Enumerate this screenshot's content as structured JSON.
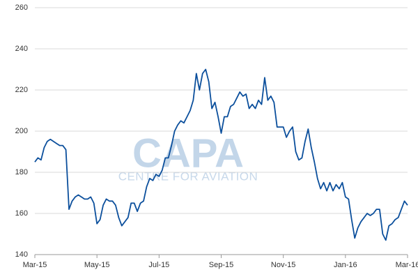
{
  "chart_data": {
    "type": "line",
    "watermark": "CAPA",
    "watermark_subtitle": "CENTRE FOR AVIATION",
    "categories": [
      "Mar-15",
      null,
      null,
      null,
      null,
      null,
      null,
      null,
      null,
      null,
      null,
      null,
      null,
      null,
      null,
      null,
      null,
      null,
      null,
      null,
      "May-15",
      null,
      null,
      null,
      null,
      null,
      null,
      null,
      null,
      null,
      null,
      null,
      null,
      null,
      null,
      null,
      null,
      null,
      null,
      null,
      "Jul-15",
      null,
      null,
      null,
      null,
      null,
      null,
      null,
      null,
      null,
      null,
      null,
      null,
      null,
      null,
      null,
      null,
      null,
      null,
      null,
      "Sep-15",
      null,
      null,
      null,
      null,
      null,
      null,
      null,
      null,
      null,
      null,
      null,
      null,
      null,
      null,
      null,
      null,
      null,
      null,
      null,
      "Nov-15",
      null,
      null,
      null,
      null,
      null,
      null,
      null,
      null,
      null,
      null,
      null,
      null,
      null,
      null,
      null,
      null,
      null,
      null,
      null,
      "Jan-16",
      null,
      null,
      null,
      null,
      null,
      null,
      null,
      null,
      null,
      null,
      null,
      null,
      null,
      null,
      null,
      null,
      null,
      null,
      null,
      "Mar-16"
    ],
    "series": [
      {
        "color": "#0b4f9c",
        "values": [
          185,
          187,
          186,
          192,
          195,
          196,
          195,
          194,
          193,
          193,
          191,
          162,
          166,
          168,
          169,
          168,
          167,
          167,
          168,
          165,
          155,
          157,
          164,
          167,
          166,
          166,
          164,
          158,
          154,
          156,
          158,
          165,
          165,
          161,
          165,
          166,
          173,
          177,
          176,
          179,
          178,
          181,
          187,
          187,
          193,
          200,
          203,
          205,
          204,
          207,
          210,
          215,
          228,
          220,
          228,
          230,
          224,
          211,
          214,
          207,
          199,
          207,
          207,
          212,
          213,
          216,
          219,
          217,
          218,
          211,
          213,
          211,
          215,
          213,
          226,
          215,
          217,
          214,
          202,
          202,
          202,
          197,
          200,
          202,
          190,
          186,
          187,
          195,
          201,
          192,
          185,
          177,
          172,
          175,
          171,
          175,
          171,
          174,
          172,
          175,
          168,
          167,
          157,
          148,
          153,
          156,
          158,
          160,
          159,
          160,
          162,
          162,
          150,
          147,
          154,
          155,
          157,
          158,
          162,
          166,
          164
        ]
      }
    ],
    "ylim": [
      140,
      260
    ],
    "yticks": [
      140,
      160,
      180,
      200,
      220,
      240,
      260
    ],
    "grid": true
  }
}
